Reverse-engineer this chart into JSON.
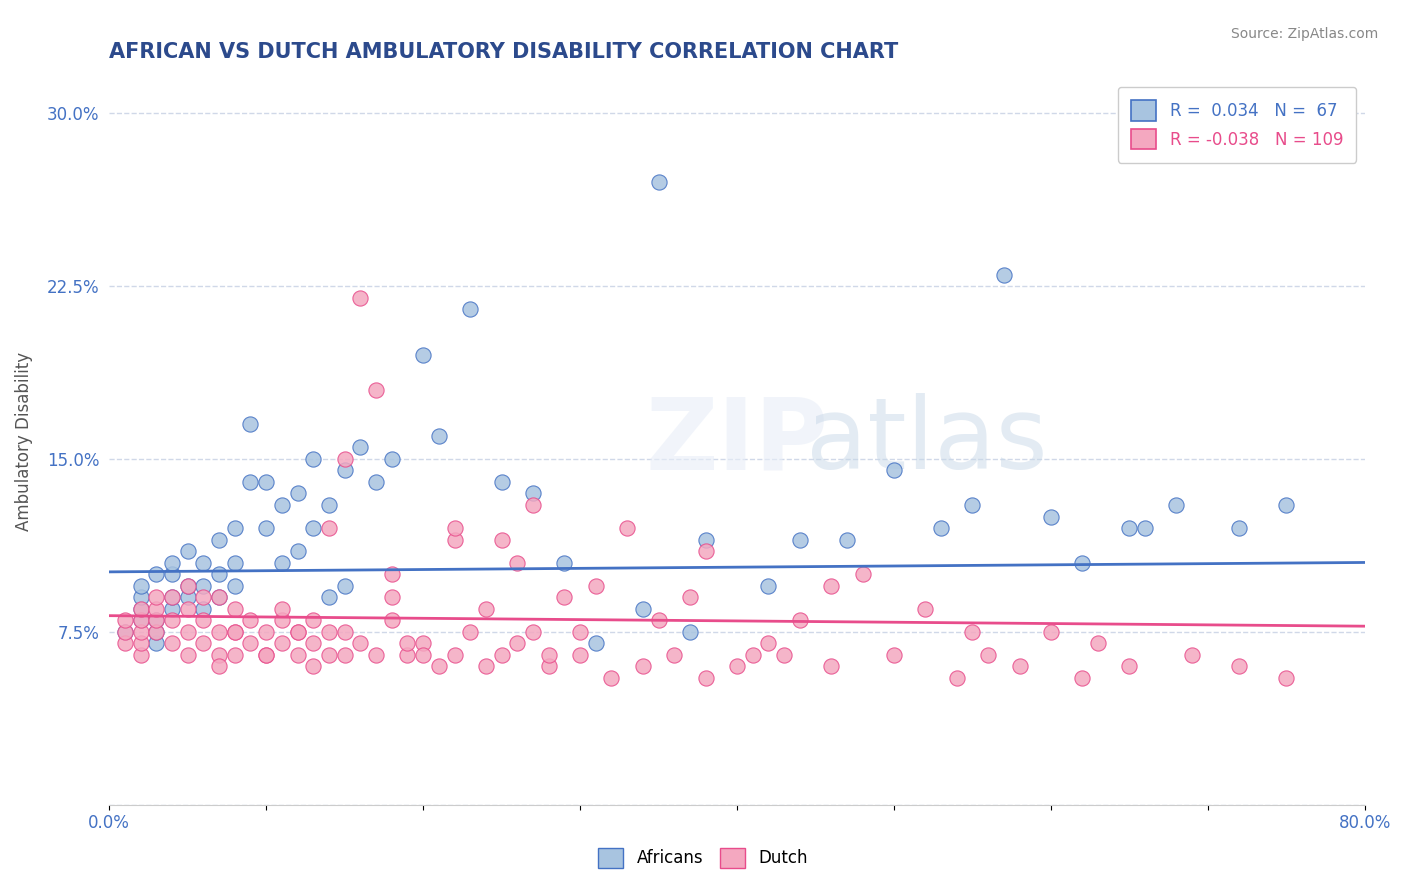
{
  "title": "AFRICAN VS DUTCH AMBULATORY DISABILITY CORRELATION CHART",
  "source": "Source: ZipAtlas.com",
  "ylabel": "Ambulatory Disability",
  "xlabel": "",
  "xlim": [
    0.0,
    0.8
  ],
  "ylim": [
    0.0,
    0.315
  ],
  "xticks": [
    0.0,
    0.1,
    0.2,
    0.3,
    0.4,
    0.5,
    0.6,
    0.7,
    0.8
  ],
  "xticklabels": [
    "0.0%",
    "",
    "",
    "",
    "",
    "",
    "",
    "",
    "80.0%"
  ],
  "yticks": [
    0.0,
    0.075,
    0.15,
    0.225,
    0.3
  ],
  "yticklabels": [
    "",
    "7.5%",
    "15.0%",
    "22.5%",
    "30.0%"
  ],
  "african_R": 0.034,
  "african_N": 67,
  "dutch_R": -0.038,
  "dutch_N": 109,
  "african_color": "#a8c4e0",
  "dutch_color": "#f4a8c0",
  "african_line_color": "#4472c4",
  "dutch_line_color": "#e84c8b",
  "watermark": "ZIPatlas",
  "legend_box_color": "#ffffff",
  "background_color": "#ffffff",
  "grid_color": "#d0d8e8",
  "african_scatter_x": [
    0.01,
    0.02,
    0.02,
    0.02,
    0.02,
    0.03,
    0.03,
    0.03,
    0.03,
    0.04,
    0.04,
    0.04,
    0.04,
    0.05,
    0.05,
    0.05,
    0.06,
    0.06,
    0.06,
    0.07,
    0.07,
    0.07,
    0.08,
    0.08,
    0.08,
    0.09,
    0.09,
    0.1,
    0.1,
    0.11,
    0.11,
    0.12,
    0.12,
    0.13,
    0.13,
    0.14,
    0.14,
    0.15,
    0.15,
    0.16,
    0.17,
    0.18,
    0.2,
    0.21,
    0.23,
    0.25,
    0.27,
    0.29,
    0.31,
    0.34,
    0.37,
    0.42,
    0.47,
    0.55,
    0.6,
    0.65,
    0.68,
    0.72,
    0.35,
    0.38,
    0.44,
    0.5,
    0.53,
    0.57,
    0.62,
    0.66,
    0.75
  ],
  "african_scatter_y": [
    0.075,
    0.08,
    0.085,
    0.09,
    0.095,
    0.07,
    0.075,
    0.08,
    0.1,
    0.085,
    0.09,
    0.1,
    0.105,
    0.09,
    0.095,
    0.11,
    0.085,
    0.095,
    0.105,
    0.09,
    0.1,
    0.115,
    0.095,
    0.105,
    0.12,
    0.14,
    0.165,
    0.12,
    0.14,
    0.105,
    0.13,
    0.11,
    0.135,
    0.12,
    0.15,
    0.09,
    0.13,
    0.095,
    0.145,
    0.155,
    0.14,
    0.15,
    0.195,
    0.16,
    0.215,
    0.14,
    0.135,
    0.105,
    0.07,
    0.085,
    0.075,
    0.095,
    0.115,
    0.13,
    0.125,
    0.12,
    0.13,
    0.12,
    0.27,
    0.115,
    0.115,
    0.145,
    0.12,
    0.23,
    0.105,
    0.12,
    0.13
  ],
  "dutch_scatter_x": [
    0.01,
    0.01,
    0.01,
    0.02,
    0.02,
    0.02,
    0.02,
    0.02,
    0.03,
    0.03,
    0.03,
    0.03,
    0.04,
    0.04,
    0.04,
    0.05,
    0.05,
    0.05,
    0.05,
    0.06,
    0.06,
    0.06,
    0.07,
    0.07,
    0.07,
    0.08,
    0.08,
    0.08,
    0.09,
    0.09,
    0.1,
    0.1,
    0.11,
    0.11,
    0.12,
    0.12,
    0.13,
    0.13,
    0.14,
    0.14,
    0.15,
    0.15,
    0.16,
    0.17,
    0.18,
    0.19,
    0.2,
    0.21,
    0.22,
    0.23,
    0.24,
    0.25,
    0.26,
    0.27,
    0.28,
    0.3,
    0.32,
    0.34,
    0.36,
    0.38,
    0.4,
    0.43,
    0.46,
    0.5,
    0.54,
    0.58,
    0.62,
    0.65,
    0.69,
    0.72,
    0.75,
    0.6,
    0.48,
    0.33,
    0.29,
    0.52,
    0.55,
    0.38,
    0.42,
    0.22,
    0.18,
    0.24,
    0.31,
    0.26,
    0.44,
    0.37,
    0.41,
    0.56,
    0.63,
    0.27,
    0.35,
    0.15,
    0.46,
    0.3,
    0.2,
    0.13,
    0.12,
    0.25,
    0.18,
    0.08,
    0.16,
    0.1,
    0.07,
    0.17,
    0.19,
    0.11,
    0.14,
    0.22,
    0.28
  ],
  "dutch_scatter_y": [
    0.07,
    0.075,
    0.08,
    0.065,
    0.07,
    0.075,
    0.08,
    0.085,
    0.075,
    0.08,
    0.085,
    0.09,
    0.07,
    0.08,
    0.09,
    0.065,
    0.075,
    0.085,
    0.095,
    0.07,
    0.08,
    0.09,
    0.065,
    0.075,
    0.09,
    0.065,
    0.075,
    0.085,
    0.07,
    0.08,
    0.065,
    0.075,
    0.07,
    0.08,
    0.065,
    0.075,
    0.06,
    0.08,
    0.065,
    0.075,
    0.065,
    0.075,
    0.07,
    0.065,
    0.08,
    0.065,
    0.07,
    0.06,
    0.065,
    0.075,
    0.06,
    0.065,
    0.07,
    0.075,
    0.06,
    0.065,
    0.055,
    0.06,
    0.065,
    0.055,
    0.06,
    0.065,
    0.06,
    0.065,
    0.055,
    0.06,
    0.055,
    0.06,
    0.065,
    0.06,
    0.055,
    0.075,
    0.1,
    0.12,
    0.09,
    0.085,
    0.075,
    0.11,
    0.07,
    0.115,
    0.1,
    0.085,
    0.095,
    0.105,
    0.08,
    0.09,
    0.065,
    0.065,
    0.07,
    0.13,
    0.08,
    0.15,
    0.095,
    0.075,
    0.065,
    0.07,
    0.075,
    0.115,
    0.09,
    0.075,
    0.22,
    0.065,
    0.06,
    0.18,
    0.07,
    0.085,
    0.12,
    0.12,
    0.065
  ]
}
